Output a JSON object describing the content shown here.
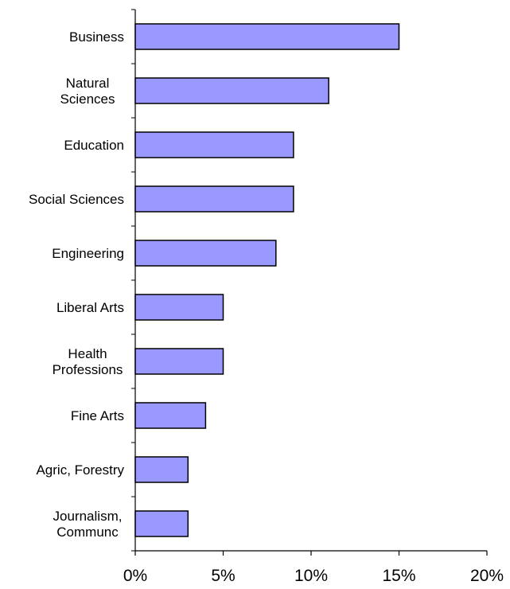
{
  "chart_data": {
    "type": "bar",
    "orientation": "horizontal",
    "categories": [
      "Business",
      "Natural Sciences",
      "Education",
      "Social Sciences",
      "Engineering",
      "Liberal Arts",
      "Health Professions",
      "Fine Arts",
      "Agric, Forestry",
      "Journalism, Communc"
    ],
    "category_lines": [
      [
        "Business"
      ],
      [
        "Natural",
        "Sciences"
      ],
      [
        "Education"
      ],
      [
        "Social Sciences"
      ],
      [
        "Engineering"
      ],
      [
        "Liberal Arts"
      ],
      [
        "Health",
        "Professions"
      ],
      [
        "Fine Arts"
      ],
      [
        "Agric, Forestry"
      ],
      [
        "Journalism,",
        "Communc"
      ]
    ],
    "values": [
      15,
      11,
      9,
      9,
      8,
      5,
      5,
      4,
      3,
      3
    ],
    "xlim": [
      0,
      20
    ],
    "x_ticks": [
      0,
      5,
      10,
      15,
      20
    ],
    "x_tick_labels": [
      "0%",
      "5%",
      "10%",
      "15%",
      "20%"
    ],
    "bar_color": "#9999ff",
    "bar_outline": "#000000",
    "grid": false,
    "title": "",
    "xlabel": "",
    "ylabel": ""
  }
}
